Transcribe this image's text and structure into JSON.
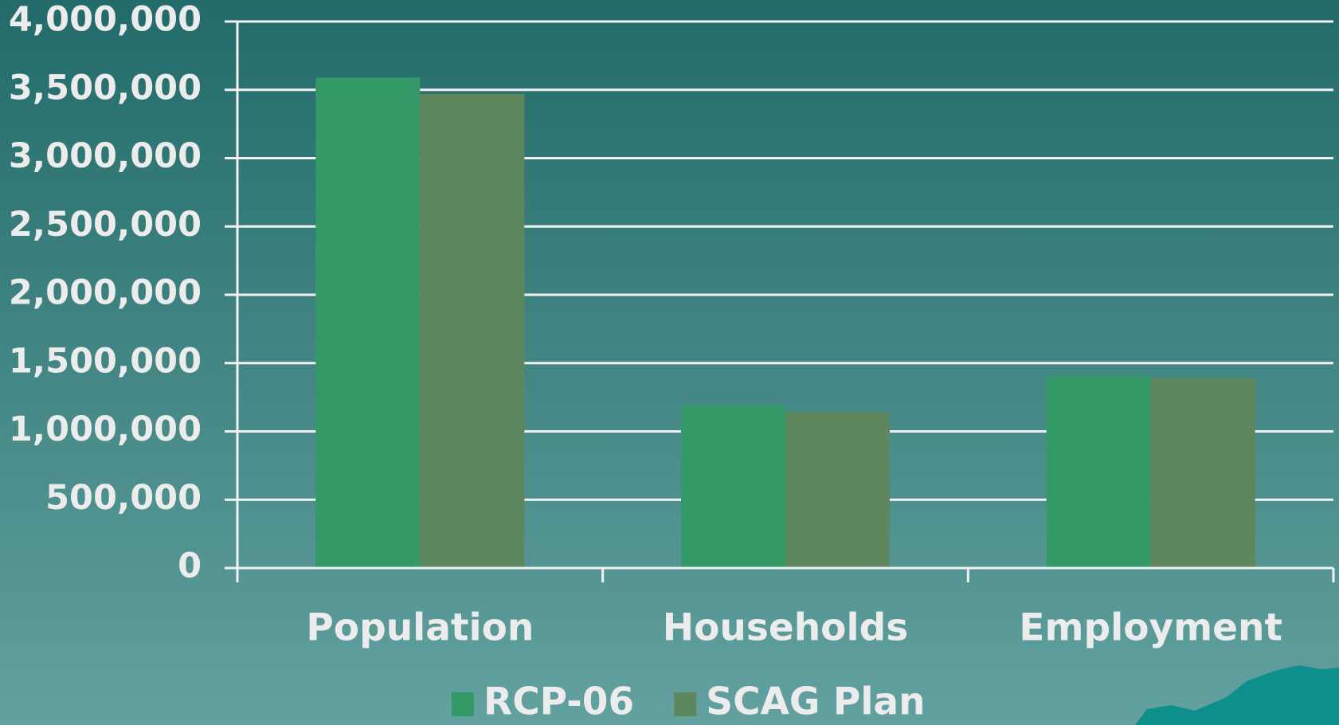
{
  "chart_data": {
    "type": "bar",
    "categories": [
      "Population",
      "Households",
      "Employment"
    ],
    "series": [
      {
        "name": "RCP-06",
        "color": "#339966",
        "values": [
          3590000,
          1190000,
          1410000
        ]
      },
      {
        "name": "SCAG Plan",
        "color": "#5f875e",
        "values": [
          3470000,
          1140000,
          1390000
        ]
      }
    ],
    "ylim": [
      0,
      4000000
    ],
    "yticks": [
      0,
      {
        "value": 500000,
        "label": "500,000"
      },
      {
        "value": 1000000,
        "label": "1,000,000"
      },
      {
        "value": 1500000,
        "label": "1,500,000"
      },
      {
        "value": 2000000,
        "label": "2,000,000"
      },
      {
        "value": 2500000,
        "label": "2,500,000"
      },
      {
        "value": 3000000,
        "label": "3,000,000"
      },
      {
        "value": 3500000,
        "label": "3,500,000"
      },
      {
        "value": 4000000,
        "label": "4,000,000"
      }
    ],
    "grid": true,
    "legend": "bottom"
  }
}
